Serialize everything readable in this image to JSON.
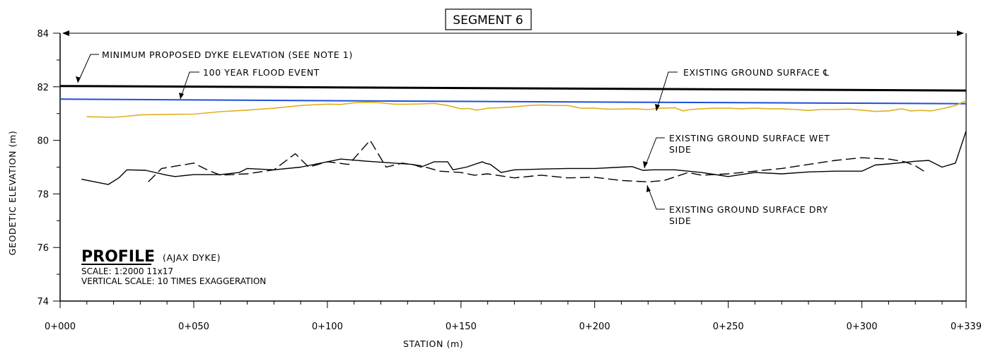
{
  "chart_data": {
    "type": "line",
    "title": "SEGMENT 6",
    "xlabel": "STATION (m)",
    "ylabel": "GEODETIC ELEVATION (m)",
    "xlim": [
      0,
      339
    ],
    "ylim": [
      74,
      84
    ],
    "grid": false,
    "x_tick_labels": [
      "0+000",
      "0+050",
      "0+100",
      "0+150",
      "0+200",
      "0+250",
      "0+300",
      "0+339"
    ],
    "x_ticks": [
      0,
      50,
      100,
      150,
      200,
      250,
      300,
      339
    ],
    "y_ticks": [
      74,
      76,
      78,
      80,
      82,
      84
    ],
    "series": [
      {
        "name": "MINIMUM PROPOSED DYKE ELEVATION (SEE NOTE 1)",
        "color": "#000000",
        "style": "solid",
        "width": 3,
        "points": [
          [
            0,
            82.03
          ],
          [
            339,
            81.86
          ]
        ]
      },
      {
        "name": "100 YEAR FLOOD EVENT",
        "color": "#1f4fd6",
        "style": "solid",
        "width": 2,
        "points": [
          [
            0,
            81.54
          ],
          [
            100,
            81.48
          ],
          [
            200,
            81.43
          ],
          [
            339,
            81.37
          ]
        ]
      },
      {
        "name": "EXISTING GROUND SURFACE ℄",
        "color": "#e0b020",
        "style": "solid",
        "width": 1.6,
        "points": [
          [
            10,
            80.88
          ],
          [
            15,
            80.87
          ],
          [
            20,
            80.86
          ],
          [
            25,
            80.9
          ],
          [
            30,
            80.95
          ],
          [
            40,
            80.97
          ],
          [
            50,
            80.98
          ],
          [
            60,
            81.07
          ],
          [
            70,
            81.13
          ],
          [
            80,
            81.2
          ],
          [
            90,
            81.3
          ],
          [
            95,
            81.33
          ],
          [
            100,
            81.35
          ],
          [
            105,
            81.34
          ],
          [
            110,
            81.4
          ],
          [
            115,
            81.42
          ],
          [
            120,
            81.4
          ],
          [
            125,
            81.35
          ],
          [
            130,
            81.35
          ],
          [
            135,
            81.36
          ],
          [
            140,
            81.38
          ],
          [
            145,
            81.3
          ],
          [
            150,
            81.18
          ],
          [
            153,
            81.19
          ],
          [
            156,
            81.13
          ],
          [
            160,
            81.2
          ],
          [
            165,
            81.22
          ],
          [
            170,
            81.25
          ],
          [
            175,
            81.3
          ],
          [
            180,
            81.32
          ],
          [
            185,
            81.3
          ],
          [
            190,
            81.3
          ],
          [
            195,
            81.2
          ],
          [
            200,
            81.2
          ],
          [
            205,
            81.16
          ],
          [
            210,
            81.17
          ],
          [
            215,
            81.18
          ],
          [
            220,
            81.15
          ],
          [
            225,
            81.2
          ],
          [
            230,
            81.22
          ],
          [
            233,
            81.1
          ],
          [
            236,
            81.15
          ],
          [
            240,
            81.18
          ],
          [
            245,
            81.2
          ],
          [
            250,
            81.2
          ],
          [
            255,
            81.18
          ],
          [
            260,
            81.2
          ],
          [
            265,
            81.18
          ],
          [
            270,
            81.18
          ],
          [
            275,
            81.15
          ],
          [
            280,
            81.12
          ],
          [
            285,
            81.15
          ],
          [
            290,
            81.15
          ],
          [
            295,
            81.17
          ],
          [
            300,
            81.13
          ],
          [
            305,
            81.08
          ],
          [
            310,
            81.1
          ],
          [
            315,
            81.18
          ],
          [
            318,
            81.1
          ],
          [
            322,
            81.12
          ],
          [
            326,
            81.1
          ],
          [
            330,
            81.18
          ],
          [
            335,
            81.3
          ],
          [
            339,
            81.48
          ]
        ]
      },
      {
        "name": "EXISTING GROUND SURFACE WET SIDE",
        "color": "#000000",
        "style": "solid",
        "width": 1.4,
        "points": [
          [
            8,
            78.55
          ],
          [
            18,
            78.35
          ],
          [
            22,
            78.6
          ],
          [
            25,
            78.9
          ],
          [
            32,
            78.88
          ],
          [
            40,
            78.7
          ],
          [
            43,
            78.65
          ],
          [
            50,
            78.72
          ],
          [
            60,
            78.72
          ],
          [
            67,
            78.8
          ],
          [
            70,
            78.95
          ],
          [
            80,
            78.9
          ],
          [
            90,
            79.0
          ],
          [
            100,
            79.2
          ],
          [
            105,
            79.3
          ],
          [
            115,
            79.22
          ],
          [
            125,
            79.15
          ],
          [
            132,
            79.1
          ],
          [
            135,
            79.0
          ],
          [
            140,
            79.2
          ],
          [
            145,
            79.2
          ],
          [
            147,
            78.9
          ],
          [
            152,
            79.0
          ],
          [
            158,
            79.2
          ],
          [
            159,
            79.15
          ],
          [
            161,
            79.1
          ],
          [
            165,
            78.8
          ],
          [
            170,
            78.9
          ],
          [
            180,
            78.93
          ],
          [
            190,
            78.95
          ],
          [
            200,
            78.95
          ],
          [
            210,
            79.0
          ],
          [
            214,
            79.02
          ],
          [
            218,
            78.88
          ],
          [
            222,
            78.9
          ],
          [
            230,
            78.9
          ],
          [
            240,
            78.8
          ],
          [
            250,
            78.65
          ],
          [
            260,
            78.8
          ],
          [
            270,
            78.75
          ],
          [
            280,
            78.82
          ],
          [
            290,
            78.85
          ],
          [
            300,
            78.85
          ],
          [
            305,
            79.08
          ],
          [
            310,
            79.12
          ],
          [
            320,
            79.22
          ],
          [
            325,
            79.25
          ],
          [
            330,
            79.0
          ],
          [
            335,
            79.15
          ],
          [
            339,
            80.35
          ]
        ]
      },
      {
        "name": "EXISTING GROUND SURFACE DRY SIDE",
        "color": "#000000",
        "style": "dashed",
        "width": 1.4,
        "points": [
          [
            33,
            78.45
          ],
          [
            38,
            78.95
          ],
          [
            50,
            79.15
          ],
          [
            55,
            78.9
          ],
          [
            60,
            78.7
          ],
          [
            70,
            78.75
          ],
          [
            80,
            78.9
          ],
          [
            88,
            79.5
          ],
          [
            93,
            79.0
          ],
          [
            100,
            79.2
          ],
          [
            108,
            79.1
          ],
          [
            116,
            80.0
          ],
          [
            122,
            79.0
          ],
          [
            128,
            79.15
          ],
          [
            135,
            79.05
          ],
          [
            142,
            78.85
          ],
          [
            150,
            78.8
          ],
          [
            155,
            78.7
          ],
          [
            160,
            78.75
          ],
          [
            170,
            78.6
          ],
          [
            180,
            78.7
          ],
          [
            190,
            78.6
          ],
          [
            200,
            78.62
          ],
          [
            210,
            78.5
          ],
          [
            214,
            78.48
          ],
          [
            220,
            78.45
          ],
          [
            226,
            78.5
          ],
          [
            235,
            78.8
          ],
          [
            240,
            78.7
          ],
          [
            250,
            78.75
          ],
          [
            260,
            78.85
          ],
          [
            270,
            78.95
          ],
          [
            280,
            79.1
          ],
          [
            290,
            79.25
          ],
          [
            300,
            79.35
          ],
          [
            310,
            79.3
          ],
          [
            316,
            79.2
          ],
          [
            320,
            79.05
          ],
          [
            324,
            78.8
          ]
        ]
      }
    ],
    "annotations": {
      "profile_heading": "PROFILE",
      "profile_sub": "(AJAX DYKE)",
      "scale": "SCALE: 1:2000 11x17",
      "vertical_scale": "VERTICAL SCALE:  10 TIMES EXAGGERATION",
      "dyke_label": "MINIMUM PROPOSED DYKE ELEVATION (SEE NOTE 1)",
      "flood_label": "100 YEAR FLOOD EVENT",
      "centerline_label": "EXISTING GROUND SURFACE ℄",
      "wet_label_line1": "EXISTING GROUND SURFACE WET",
      "wet_label_line2": "SIDE",
      "dry_label_line1": "EXISTING GROUND SURFACE DRY",
      "dry_label_line2": "SIDE"
    }
  }
}
